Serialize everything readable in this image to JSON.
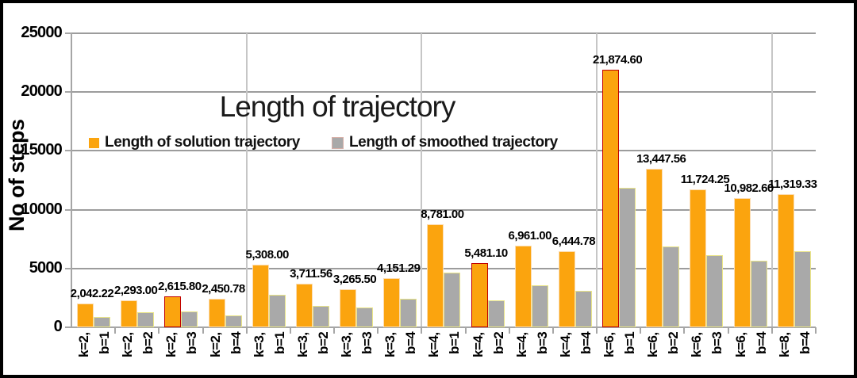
{
  "window": {
    "background": "#ffffff",
    "frame_border_color": "#000000"
  },
  "chart_data": {
    "type": "bar",
    "title": "Length of trajectory",
    "ylabel": "No of steps",
    "xlabel": "",
    "ylim": [
      0,
      25000
    ],
    "yticks": [
      0,
      5000,
      10000,
      15000,
      20000,
      25000
    ],
    "grid": "horizontal gridlines every 5000; vertical separators between k-groups",
    "legend_position": "inside plot, upper-left under title",
    "categories": [
      [
        "k=2,",
        "b=1"
      ],
      [
        "k=2,",
        "b=2"
      ],
      [
        "k=2,",
        "b=3"
      ],
      [
        "k=2,",
        "b=4"
      ],
      [
        "k=3,",
        "b=1"
      ],
      [
        "k=3,",
        "b=2"
      ],
      [
        "k=3,",
        "b=3"
      ],
      [
        "k=3,",
        "b=4"
      ],
      [
        "k=4,",
        "b=1"
      ],
      [
        "k=4,",
        "b=2"
      ],
      [
        "k=4,",
        "b=3"
      ],
      [
        "k=4,",
        "b=4"
      ],
      [
        "k=6,",
        "b=1"
      ],
      [
        "k=6,",
        "b=2"
      ],
      [
        "k=6,",
        "b=3"
      ],
      [
        "k=6,",
        "b=4"
      ],
      [
        "k=8,",
        "b=4"
      ]
    ],
    "series": [
      {
        "name": "Length of solution trajectory",
        "color": "#FBA40E",
        "border_color": "#FCDCB0",
        "red_border_color": "#C00000",
        "red_border_indices": [
          2,
          9,
          12
        ],
        "values": [
          2042.22,
          2293.0,
          2615.8,
          2450.78,
          5308.0,
          3711.56,
          3265.5,
          4151.29,
          8781.0,
          5481.1,
          6961.0,
          6444.78,
          21874.6,
          13447.56,
          11724.25,
          10982.6,
          11319.33
        ],
        "data_labels": [
          "2,042.22",
          "2,293.00",
          "2,615.80",
          "2,450.78",
          "5,308.00",
          "3,711.56",
          "3,265.50",
          "4,151.29",
          "8,781.00",
          "5,481.10",
          "6,961.00",
          "6,444.78",
          "21,874.60",
          "13,447.56",
          "11,724.25",
          "10,982.60",
          "11,319.33"
        ]
      },
      {
        "name": "Length of smoothed trajectory",
        "color": "#A9A9A9",
        "border_color": "#EAE588",
        "values": [
          900,
          1250,
          1320,
          1020,
          2750,
          1800,
          1660,
          2400,
          4650,
          2280,
          3570,
          3130,
          11850,
          6900,
          6150,
          5650,
          6500
        ]
      }
    ],
    "group_separator_after_indices": [
      3,
      7,
      11,
      15
    ],
    "axis_color": "#A6A6A6",
    "gridline_color": "#9C9C9C",
    "separator_color": "#C6C6C6"
  }
}
